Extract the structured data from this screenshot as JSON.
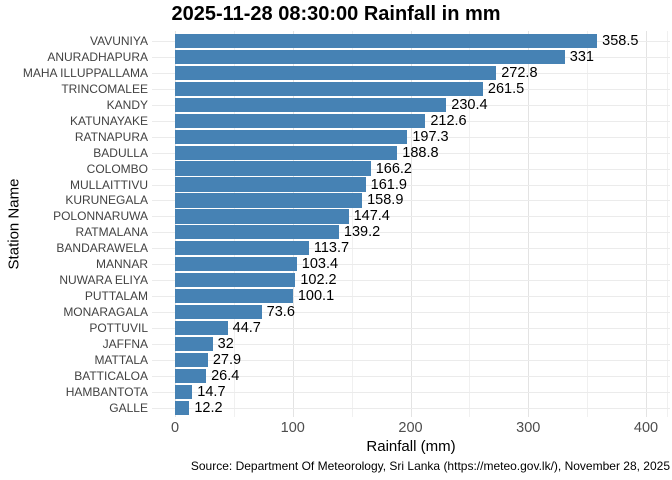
{
  "chart_data": {
    "type": "bar",
    "orientation": "horizontal",
    "title": "2025-11-28 08:30:00 Rainfall in mm",
    "xlabel": "Rainfall (mm)",
    "ylabel": "Station Name",
    "caption": "Source: Department Of Meteorology, Sri Lanka (https://meteo.gov.lk/), November 28, 2025",
    "categories": [
      "VAVUNIYA",
      "ANURADHAPURA",
      "MAHA ILLUPPALLAMA",
      "TRINCOMALEE",
      "KANDY",
      "KATUNAYAKE",
      "RATNAPURA",
      "BADULLA",
      "COLOMBO",
      "MULLAITTIVU",
      "KURUNEGALA",
      "POLONNARUWA",
      "RATMALANA",
      "BANDARAWELA",
      "MANNAR",
      "NUWARA ELIYA",
      "PUTTALAM",
      "MONARAGALA",
      "POTTUVIL",
      "JAFFNA",
      "MATTALA",
      "BATTICALOA",
      "HAMBANTOTA",
      "GALLE"
    ],
    "values": [
      358.5,
      331,
      272.8,
      261.5,
      230.4,
      212.6,
      197.3,
      188.8,
      166.2,
      161.9,
      158.9,
      147.4,
      139.2,
      113.7,
      103.4,
      102.2,
      100.1,
      73.6,
      44.7,
      32,
      27.9,
      26.4,
      14.7,
      12.2
    ],
    "value_labels": [
      "358.5",
      "331",
      "272.8",
      "261.5",
      "230.4",
      "212.6",
      "197.3",
      "188.8",
      "166.2",
      "161.9",
      "158.9",
      "147.4",
      "139.2",
      "113.7",
      "103.4",
      "102.2",
      "100.1",
      "73.6",
      "44.7",
      "32",
      "27.9",
      "26.4",
      "14.7",
      "12.2"
    ],
    "xlim": [
      0,
      400
    ],
    "x_major_ticks": [
      0,
      100,
      200,
      300,
      400
    ],
    "x_major_tick_labels": [
      "0",
      "100",
      "200",
      "300",
      "400"
    ],
    "x_minor_ticks": [
      50,
      150,
      250,
      350
    ],
    "grid": true,
    "legend": "none",
    "bar_color": "#4682B4"
  }
}
